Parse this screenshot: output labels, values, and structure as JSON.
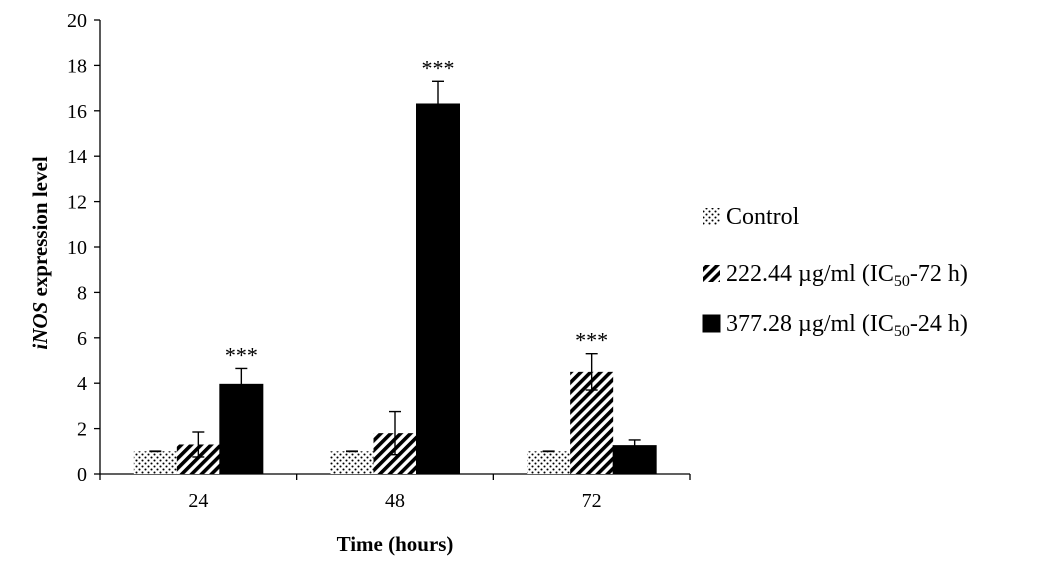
{
  "chart_data": {
    "type": "bar",
    "xlabel": "Time (hours)",
    "ylabel_italic": "iNOS",
    "ylabel_rest": " expression level",
    "ylim": [
      0,
      20
    ],
    "yticks": [
      "0",
      "2",
      "4",
      "6",
      "8",
      "10",
      "12",
      "14",
      "16",
      "18",
      "20"
    ],
    "categories": [
      "24",
      "48",
      "72"
    ],
    "series": [
      {
        "name": "Control",
        "pattern": "dots",
        "values": [
          1,
          1,
          1
        ],
        "errors": [
          0,
          0,
          0
        ]
      },
      {
        "name_parts": [
          "222.44 µg/ml (IC",
          "50",
          "-72 h)"
        ],
        "pattern": "stripes",
        "values": [
          1.3,
          1.8,
          4.5
        ],
        "errors": [
          0.55,
          0.95,
          0.8
        ]
      },
      {
        "name_parts": [
          "377.28 µg/ml (IC",
          "50",
          "-24 h)"
        ],
        "pattern": "solid",
        "values": [
          3.95,
          16.3,
          1.25
        ],
        "errors": [
          0.7,
          1.0,
          0.25
        ]
      }
    ],
    "significance": [
      {
        "category": "24",
        "series": 2,
        "label": "***"
      },
      {
        "category": "48",
        "series": 2,
        "label": "***"
      },
      {
        "category": "72",
        "series": 1,
        "label": "***"
      }
    ],
    "legend_position": "right",
    "grid": false,
    "colors": {
      "bar": "#000000",
      "axis": "#000000",
      "background": "#ffffff"
    }
  }
}
